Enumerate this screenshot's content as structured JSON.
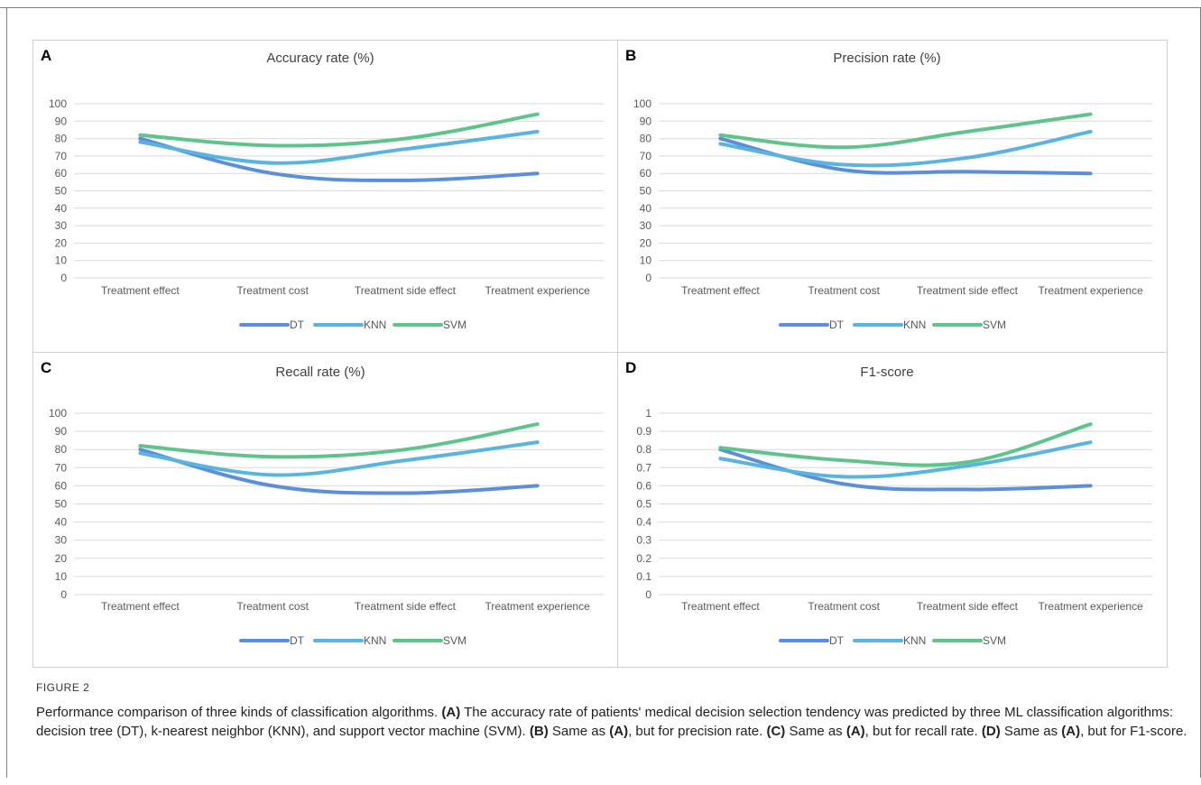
{
  "figure_label": "FIGURE 2",
  "caption_parts": [
    {
      "text": "Performance comparison of three kinds of classification algorithms. ",
      "bold": false
    },
    {
      "text": "(A)",
      "bold": true
    },
    {
      "text": " The accuracy rate of patients' medical decision selection tendency was predicted by three ML classification algorithms: decision tree (DT), k-nearest neighbor (KNN), and support vector machine (SVM). ",
      "bold": false
    },
    {
      "text": "(B)",
      "bold": true
    },
    {
      "text": " Same as ",
      "bold": false
    },
    {
      "text": "(A)",
      "bold": true
    },
    {
      "text": ", but for precision rate. ",
      "bold": false
    },
    {
      "text": "(C)",
      "bold": true
    },
    {
      "text": " Same as ",
      "bold": false
    },
    {
      "text": "(A)",
      "bold": true
    },
    {
      "text": ", but for recall rate. ",
      "bold": false
    },
    {
      "text": "(D)",
      "bold": true
    },
    {
      "text": " Same as ",
      "bold": false
    },
    {
      "text": "(A)",
      "bold": true
    },
    {
      "text": ", but for F1-score.",
      "bold": false
    }
  ],
  "colors": {
    "DT": "#5b8fd9",
    "KNN": "#5ab4e0",
    "SVM": "#5ec48c"
  },
  "chart_data": [
    {
      "panel": "A",
      "type": "line",
      "title": "Accuracy rate  (%)",
      "categories": [
        "Treatment effect",
        "Treatment cost",
        "Treatment side effect",
        "Treatment experience"
      ],
      "ylim": [
        0,
        100
      ],
      "yticks": [
        "0",
        "10",
        "20",
        "30",
        "40",
        "50",
        "60",
        "70",
        "80",
        "90",
        "100"
      ],
      "grid": true,
      "legend_position": "bottom",
      "series": [
        {
          "name": "DT",
          "values": [
            80,
            60,
            56,
            60
          ]
        },
        {
          "name": "KNN",
          "values": [
            78,
            66,
            74,
            84
          ]
        },
        {
          "name": "SVM",
          "values": [
            82,
            76,
            80,
            94
          ]
        }
      ]
    },
    {
      "panel": "B",
      "type": "line",
      "title": "Precision rate  (%)",
      "categories": [
        "Treatment effect",
        "Treatment cost",
        "Treatment side effect",
        "Treatment experience"
      ],
      "ylim": [
        0,
        100
      ],
      "yticks": [
        "0",
        "10",
        "20",
        "30",
        "40",
        "50",
        "60",
        "70",
        "80",
        "90",
        "100"
      ],
      "grid": true,
      "legend_position": "bottom",
      "series": [
        {
          "name": "DT",
          "values": [
            80,
            62,
            61,
            60
          ]
        },
        {
          "name": "KNN",
          "values": [
            77,
            65,
            69,
            84
          ]
        },
        {
          "name": "SVM",
          "values": [
            82,
            75,
            84,
            94
          ]
        }
      ]
    },
    {
      "panel": "C",
      "type": "line",
      "title": "Recall rate (%)",
      "categories": [
        "Treatment effect",
        "Treatment cost",
        "Treatment side effect",
        "Treatment experience"
      ],
      "ylim": [
        0,
        100
      ],
      "yticks": [
        "0",
        "10",
        "20",
        "30",
        "40",
        "50",
        "60",
        "70",
        "80",
        "90",
        "100"
      ],
      "grid": true,
      "legend_position": "bottom",
      "series": [
        {
          "name": "DT",
          "values": [
            80,
            60,
            56,
            60
          ]
        },
        {
          "name": "KNN",
          "values": [
            78,
            66,
            74,
            84
          ]
        },
        {
          "name": "SVM",
          "values": [
            82,
            76,
            80,
            94
          ]
        }
      ]
    },
    {
      "panel": "D",
      "type": "line",
      "title": "F1-score",
      "categories": [
        "Treatment effect",
        "Treatment cost",
        "Treatment side effect",
        "Treatment experience"
      ],
      "ylim": [
        0,
        1
      ],
      "yticks": [
        "0",
        "0.1",
        "0.2",
        "0.3",
        "0.4",
        "0.5",
        "0.6",
        "0.7",
        "0.8",
        "0.9",
        "1"
      ],
      "grid": true,
      "legend_position": "bottom",
      "series": [
        {
          "name": "DT",
          "values": [
            0.8,
            0.61,
            0.58,
            0.6
          ]
        },
        {
          "name": "KNN",
          "values": [
            0.75,
            0.65,
            0.71,
            0.84
          ]
        },
        {
          "name": "SVM",
          "values": [
            0.81,
            0.74,
            0.73,
            0.94
          ]
        }
      ]
    }
  ]
}
